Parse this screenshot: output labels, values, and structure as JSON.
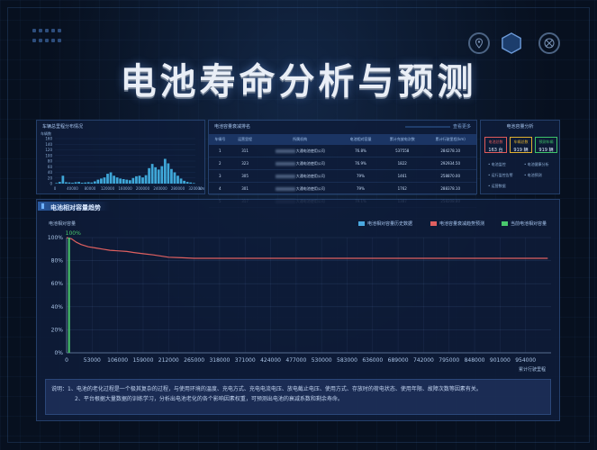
{
  "page_title": "电池寿命分析与预测",
  "top_icons": [
    "location-icon",
    "hexagon-icon",
    "crosshair-icon"
  ],
  "hist_panel": {
    "title": "车辆总里程分布情况",
    "ylabel": "车辆数",
    "yticks": [
      "160",
      "140",
      "120",
      "100",
      "80",
      "60",
      "40",
      "20",
      "0"
    ],
    "xticks": [
      "0",
      "40000",
      "80000",
      "120000",
      "160000",
      "200000",
      "240000",
      "280000",
      "320000"
    ],
    "xunit": "km",
    "bars": [
      2,
      6,
      28,
      5,
      4,
      3,
      5,
      6,
      3,
      4,
      5,
      4,
      8,
      14,
      18,
      22,
      35,
      40,
      28,
      22,
      18,
      16,
      14,
      12,
      20,
      26,
      28,
      22,
      30,
      55,
      70,
      58,
      50,
      62,
      88,
      72,
      52,
      40,
      28,
      18,
      10,
      6,
      4,
      2
    ]
  },
  "ranking_panel": {
    "title": "电池容量衰减排名",
    "link": "查看更多",
    "headers": [
      "车辆号",
      "运营里程",
      "所属机构",
      "电池相对容量",
      "累计充放电次数",
      "累计行驶里程(km)"
    ],
    "rows": [
      [
        "1",
        "311",
        "大通电池使用公司",
        "76.8%",
        "537558",
        "284278.10"
      ],
      [
        "2",
        "323",
        "大通电池使用公司",
        "76.9%",
        "1822",
        "292934.50"
      ],
      [
        "3",
        "305",
        "大通电池使用公司",
        "79%",
        "1461",
        "258870.00"
      ],
      [
        "4",
        "301",
        "大通电池使用公司",
        "79%",
        "1762",
        "288378.10"
      ],
      [
        "5",
        "317",
        "大通电池使用公司",
        "79.1%",
        "1387",
        "258208.80"
      ]
    ]
  },
  "stats_panel": {
    "title": "电池容量分析",
    "cards": [
      {
        "label": "电池总数",
        "value": "163",
        "unit": "台",
        "color": "#e05a5a"
      },
      {
        "label": "车辆总数",
        "value": "919",
        "unit": "辆",
        "color": "#e0b030"
      },
      {
        "label": "预测车辆",
        "value": "919",
        "unit": "辆",
        "color": "#3ec46a"
      }
    ],
    "links": [
      "电池监控",
      "电池健康分析",
      "运行监控告警",
      "电池预测",
      "运营数据"
    ]
  },
  "trend_panel": {
    "title": "电池相对容量趋势",
    "ylabel": "电池相对容量",
    "xlabel": "累计行驶里程",
    "legend": [
      {
        "label": "电池相对容量历史数据",
        "color": "#4aa9e0"
      },
      {
        "label": "电池容量衰减趋势预测",
        "color": "#e06060"
      },
      {
        "label": "当前电池相对容量",
        "color": "#49c86d"
      }
    ],
    "current_label": "100%"
  },
  "chart_data": {
    "type": "line",
    "ylabel": "电池相对容量",
    "xlabel": "累计行驶里程",
    "ylim": [
      0,
      100
    ],
    "xlim": [
      0,
      1007000
    ],
    "yticks": [
      "0%",
      "20%",
      "40%",
      "60%",
      "80%",
      "100%"
    ],
    "xticks": [
      "0",
      "53000",
      "106000",
      "159000",
      "212000",
      "265000",
      "318000",
      "371000",
      "424000",
      "477000",
      "530000",
      "583000",
      "636000",
      "689000",
      "742000",
      "795000",
      "848000",
      "901000",
      "954000"
    ],
    "series": [
      {
        "name": "电池相对容量历史数据",
        "values": []
      },
      {
        "name": "电池容量衰减趋势预测",
        "x": [
          0,
          10000,
          20000,
          30000,
          45000,
          60000,
          75000,
          90000,
          106000,
          125000,
          140000,
          159000,
          180000,
          212000,
          240000,
          265000,
          318000,
          424000,
          530000,
          636000,
          742000,
          848000,
          954000,
          1000000
        ],
        "values": [
          100,
          99,
          96,
          94,
          92,
          91,
          90,
          89,
          88.5,
          88,
          87,
          86,
          85,
          83,
          82.5,
          82,
          82,
          82,
          82,
          82,
          82,
          82,
          82,
          82
        ]
      },
      {
        "name": "当前电池相对容量",
        "x": [
          5000
        ],
        "values": [
          100
        ]
      }
    ]
  },
  "notes": {
    "line1": "说明：1、电池的老化过程是一个极其复杂的过程，与使用环境的温度、充电方式、充电电流电压、放电截止电压、使用方式、存放时的荷电状态、使用年限、故障次数等因素有关。",
    "line2": "2、平台根据大量数据的训练学习，分析出电池老化的各个影响因素权重，可预测出电池的衰减系数和剩余寿命。"
  }
}
